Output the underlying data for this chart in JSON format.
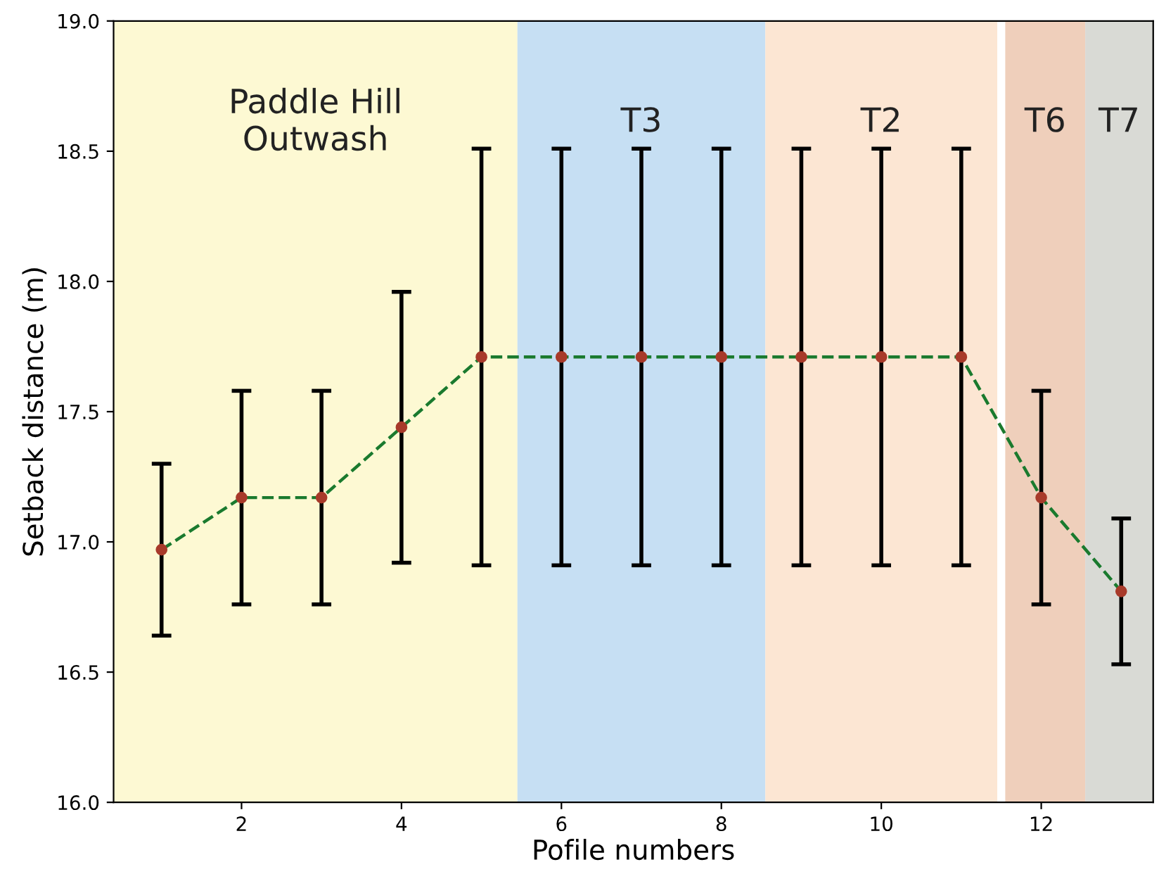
{
  "chart_data": {
    "type": "line",
    "xlabel": "Pofile numbers",
    "ylabel": "Setback distance (m)",
    "x": [
      1,
      2,
      3,
      4,
      5,
      6,
      7,
      8,
      9,
      10,
      11,
      12,
      13
    ],
    "series": [
      {
        "color": "#1a7a2e",
        "values": [
          16.97,
          17.17,
          17.17,
          17.44,
          17.71,
          17.71,
          17.71,
          17.71,
          17.71,
          17.71,
          17.71,
          17.17,
          16.81
        ],
        "errors": [
          0.33,
          0.41,
          0.41,
          0.52,
          0.8,
          0.8,
          0.8,
          0.8,
          0.8,
          0.8,
          0.8,
          0.41,
          0.28
        ]
      }
    ],
    "marker": "circle",
    "line_style": "dashed",
    "xlim": [
      0.4,
      13.4
    ],
    "ylim": [
      16.0,
      19.0
    ],
    "xticks": [
      2,
      4,
      6,
      8,
      10,
      12
    ],
    "yticks": [
      {
        "value": 16.0,
        "label": "16.0"
      },
      {
        "value": 16.5,
        "label": "16.5"
      },
      {
        "value": 17.0,
        "label": "17.0"
      },
      {
        "value": 17.5,
        "label": "17.5"
      },
      {
        "value": 18.0,
        "label": "18.0"
      },
      {
        "value": 18.5,
        "label": "18.5"
      },
      {
        "value": 19.0,
        "label": "19.0"
      }
    ],
    "bands": [
      {
        "axis": "x",
        "from": 0.4,
        "to": 5.45,
        "label": "Paddle Hill\nOutwash",
        "color": "#fdf9d3"
      },
      {
        "axis": "x",
        "from": 5.45,
        "to": 8.55,
        "label": "T3",
        "color": "#c6dff3"
      },
      {
        "axis": "x",
        "from": 8.55,
        "to": 11.45,
        "label": "T2",
        "color": "#fce6d3"
      },
      {
        "axis": "x",
        "from": 11.55,
        "to": 12.55,
        "label": "T6",
        "color": "#efcfbb"
      },
      {
        "axis": "x",
        "from": 12.55,
        "to": 13.4,
        "label": "T7",
        "color": "#d9dad5"
      }
    ],
    "grid": false,
    "legend": false
  }
}
